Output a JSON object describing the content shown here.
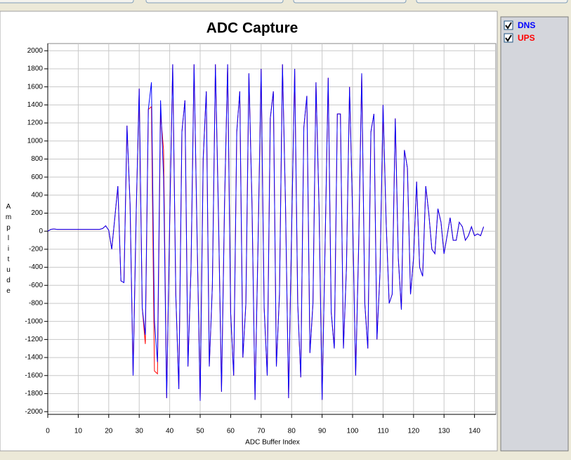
{
  "chart_data": {
    "type": "line",
    "title": "ADC Capture",
    "xlabel": "ADC Buffer Index",
    "ylabel": "Amplitude",
    "xlim": [
      0,
      147
    ],
    "ylim": [
      -2030,
      2080
    ],
    "xticks": [
      0,
      10,
      20,
      30,
      40,
      50,
      60,
      70,
      80,
      90,
      100,
      110,
      120,
      130,
      140
    ],
    "yticks": [
      -2000,
      -1800,
      -1600,
      -1400,
      -1200,
      -1000,
      -800,
      -600,
      -400,
      -200,
      0,
      200,
      400,
      600,
      800,
      1000,
      1200,
      1400,
      1600,
      1800,
      2000
    ],
    "grid": true,
    "x": [
      0,
      1,
      2,
      3,
      4,
      5,
      6,
      7,
      8,
      9,
      10,
      11,
      12,
      13,
      14,
      15,
      16,
      17,
      18,
      19,
      20,
      21,
      22,
      23,
      24,
      25,
      26,
      27,
      28,
      29,
      30,
      31,
      32,
      33,
      34,
      35,
      36,
      37,
      38,
      39,
      40,
      41,
      42,
      43,
      44,
      45,
      46,
      47,
      48,
      49,
      50,
      51,
      52,
      53,
      54,
      55,
      56,
      57,
      58,
      59,
      60,
      61,
      62,
      63,
      64,
      65,
      66,
      67,
      68,
      69,
      70,
      71,
      72,
      73,
      74,
      75,
      76,
      77,
      78,
      79,
      80,
      81,
      82,
      83,
      84,
      85,
      86,
      87,
      88,
      89,
      90,
      91,
      92,
      93,
      94,
      95,
      96,
      97,
      98,
      99,
      100,
      101,
      102,
      103,
      104,
      105,
      106,
      107,
      108,
      109,
      110,
      111,
      112,
      113,
      114,
      115,
      116,
      117,
      118,
      119,
      120,
      121,
      122,
      123,
      124,
      125,
      126,
      127,
      128,
      129,
      130,
      131,
      132,
      133,
      134,
      135,
      136,
      137,
      138,
      139,
      140,
      141,
      142,
      143
    ],
    "series": [
      {
        "name": "UPS",
        "color": "#ff0000",
        "values": [
          0,
          20,
          25,
          20,
          20,
          20,
          20,
          20,
          20,
          20,
          20,
          20,
          20,
          20,
          20,
          20,
          20,
          20,
          30,
          60,
          10,
          -200,
          150,
          500,
          -550,
          -570,
          1170,
          300,
          -1600,
          200,
          1580,
          -850,
          -1250,
          1350,
          1380,
          -1550,
          -1580,
          1300,
          900,
          -1850,
          100,
          1850,
          -700,
          -1750,
          1100,
          1450,
          -1500,
          -400,
          1850,
          -100,
          -1880,
          800,
          1550,
          -1500,
          -600,
          1850,
          200,
          -1780,
          300,
          1850,
          -900,
          -1600,
          1100,
          1550,
          -1400,
          -800,
          1750,
          300,
          -1870,
          -100,
          1800,
          -850,
          -1600,
          1250,
          1550,
          -1500,
          -700,
          1850,
          300,
          -1850,
          0,
          1800,
          -800,
          -1620,
          1150,
          1500,
          -1350,
          -800,
          1650,
          250,
          -1870,
          -100,
          1700,
          -900,
          -1300,
          1300,
          1300,
          -1300,
          -400,
          1600,
          200,
          -1600,
          -150,
          1750,
          -800,
          -1300,
          1100,
          1300,
          -1200,
          -450,
          1400,
          100,
          -800,
          -700,
          1250,
          -300,
          -870,
          900,
          700,
          -700,
          -300,
          550,
          -400,
          -500,
          500,
          200,
          -200,
          -250,
          250,
          100,
          -250,
          -50,
          150,
          -100,
          -100,
          100,
          50,
          -100,
          -50,
          50,
          -50,
          -30,
          -50,
          50
        ]
      },
      {
        "name": "DNS",
        "color": "#0000ff",
        "values": [
          0,
          20,
          25,
          20,
          20,
          20,
          20,
          20,
          20,
          20,
          20,
          20,
          20,
          20,
          20,
          20,
          20,
          20,
          30,
          60,
          10,
          -200,
          150,
          500,
          -550,
          -570,
          1170,
          300,
          -1600,
          200,
          1580,
          -850,
          -1150,
          1350,
          1650,
          -1000,
          -1450,
          1450,
          600,
          -1850,
          100,
          1850,
          -700,
          -1750,
          1100,
          1450,
          -1500,
          -400,
          1850,
          -100,
          -1880,
          800,
          1550,
          -1500,
          -600,
          1850,
          200,
          -1780,
          300,
          1850,
          -900,
          -1600,
          1100,
          1550,
          -1400,
          -800,
          1750,
          300,
          -1870,
          -100,
          1800,
          -850,
          -1600,
          1250,
          1550,
          -1500,
          -700,
          1850,
          300,
          -1850,
          0,
          1800,
          -800,
          -1620,
          1150,
          1500,
          -1350,
          -800,
          1650,
          250,
          -1870,
          -100,
          1700,
          -900,
          -1300,
          1300,
          1300,
          -1300,
          -400,
          1600,
          200,
          -1600,
          -150,
          1750,
          -800,
          -1300,
          1100,
          1300,
          -1200,
          -450,
          1400,
          100,
          -800,
          -700,
          1250,
          -300,
          -870,
          900,
          700,
          -700,
          -300,
          550,
          -400,
          -500,
          500,
          200,
          -200,
          -250,
          250,
          100,
          -250,
          -50,
          150,
          -100,
          -100,
          100,
          50,
          -100,
          -50,
          50,
          -50,
          -30,
          -50,
          50
        ]
      }
    ]
  }
}
